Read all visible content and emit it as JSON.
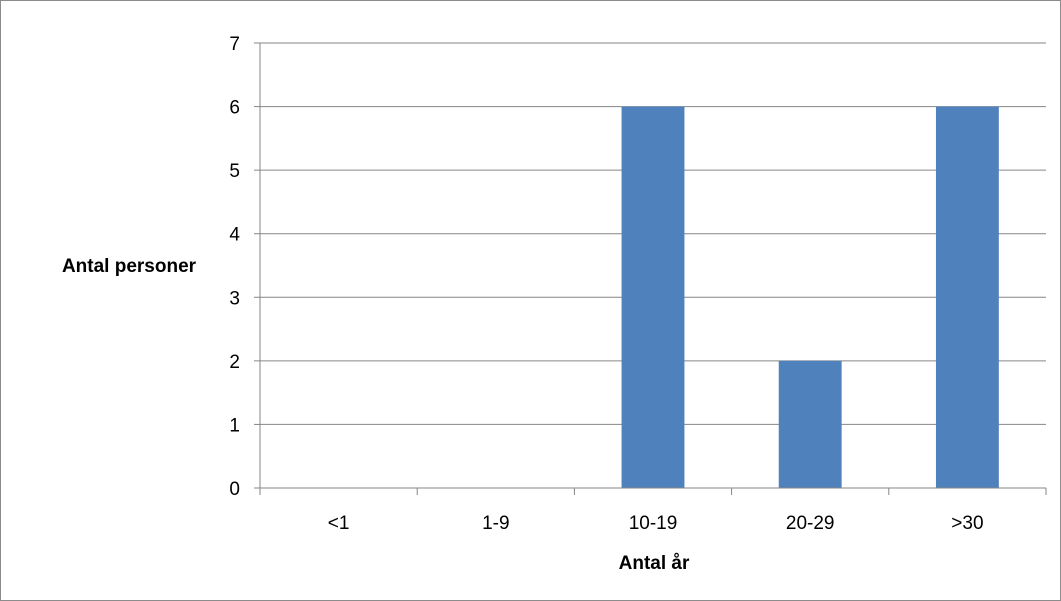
{
  "chart_data": {
    "type": "bar",
    "categories": [
      "<1",
      "1-9",
      "10-19",
      "20-29",
      ">30"
    ],
    "values": [
      0,
      0,
      6,
      2,
      6
    ],
    "title": "",
    "xlabel": "Antal år",
    "ylabel": "Antal personer",
    "ylim": [
      0,
      7
    ],
    "yticks": [
      "0",
      "1",
      "2",
      "3",
      "4",
      "5",
      "6",
      "7"
    ],
    "grid": "horizontal",
    "legend": "none",
    "bar_color": "#4f81bd",
    "grid_color": "#868686"
  }
}
